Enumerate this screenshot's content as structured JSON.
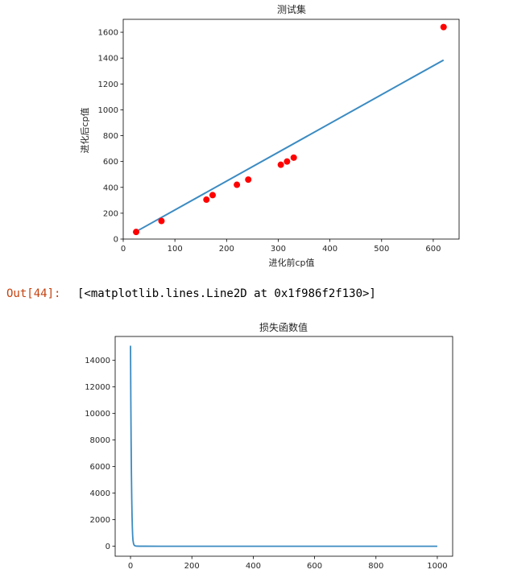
{
  "output": {
    "prompt": "Out[44]:",
    "text": "[<matplotlib.lines.Line2D at 0x1f986f2f130>]"
  },
  "colors": {
    "line": "#3b8bc2",
    "points": "#ff0000",
    "text": "#262626"
  },
  "chart_data": [
    {
      "type": "scatter",
      "title": "测试集",
      "xlabel": "进化前cp值",
      "ylabel": "进化后cp值",
      "xlim": [
        0,
        650
      ],
      "ylim": [
        0,
        1700
      ],
      "x_ticks": [
        "0",
        "100",
        "200",
        "300",
        "400",
        "500",
        "600"
      ],
      "x_tick_values": [
        0,
        100,
        200,
        300,
        400,
        500,
        600
      ],
      "y_ticks": [
        "0",
        "200",
        "400",
        "600",
        "800",
        "1000",
        "1200",
        "1400",
        "1600"
      ],
      "y_tick_values": [
        0,
        200,
        400,
        600,
        800,
        1000,
        1200,
        1400,
        1600
      ],
      "points": {
        "x": [
          25,
          74,
          161,
          173,
          220,
          242,
          305,
          317,
          330,
          620
        ],
        "y": [
          55,
          140,
          305,
          340,
          420,
          460,
          575,
          600,
          630,
          1640
        ]
      },
      "fit_line": {
        "x": [
          25,
          620
        ],
        "y": [
          58,
          1385
        ]
      }
    },
    {
      "type": "line",
      "title": "损失函数值",
      "xlabel": "",
      "ylabel": "",
      "xlim": [
        -50,
        1050
      ],
      "ylim": [
        -750,
        15800
      ],
      "x_ticks": [
        "0",
        "200",
        "400",
        "600",
        "800",
        "1000"
      ],
      "x_tick_values": [
        0,
        200,
        400,
        600,
        800,
        1000
      ],
      "y_ticks": [
        "0",
        "2000",
        "4000",
        "6000",
        "8000",
        "10000",
        "12000",
        "14000"
      ],
      "y_tick_values": [
        0,
        2000,
        4000,
        6000,
        8000,
        10000,
        12000,
        14000
      ],
      "series": {
        "x": [
          0,
          1,
          2,
          3,
          4,
          5,
          6,
          7,
          8,
          10,
          12,
          15,
          20,
          30,
          50,
          100,
          200,
          400,
          600,
          800,
          1000
        ],
        "y": [
          15100,
          11000,
          7800,
          5400,
          3600,
          2300,
          1400,
          800,
          450,
          180,
          80,
          30,
          10,
          5,
          3,
          2,
          2,
          2,
          2,
          2,
          2
        ]
      }
    }
  ]
}
